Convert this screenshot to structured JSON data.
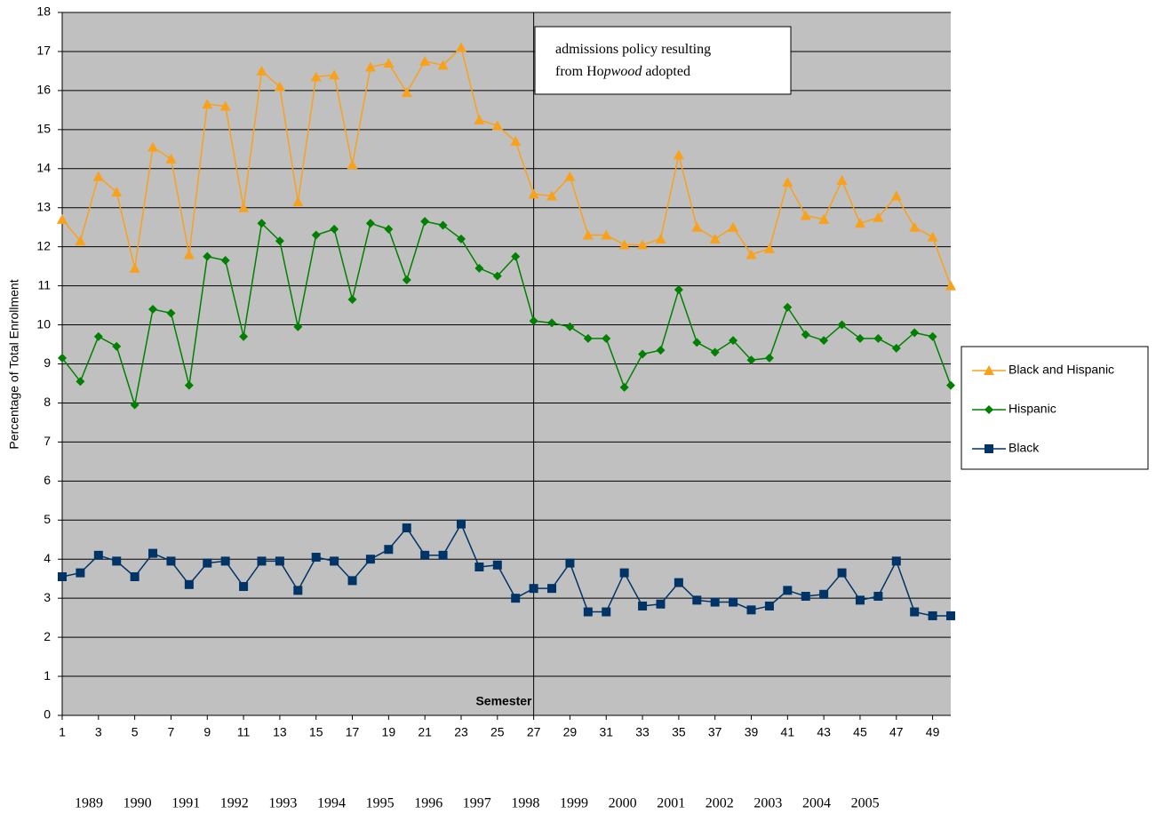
{
  "chart_data": {
    "type": "line",
    "y_label": "Percentage of Total Enrollment",
    "x_label": "Semester",
    "x": [
      1,
      2,
      3,
      4,
      5,
      6,
      7,
      8,
      9,
      10,
      11,
      12,
      13,
      14,
      15,
      16,
      17,
      18,
      19,
      20,
      21,
      22,
      23,
      24,
      25,
      26,
      27,
      28,
      29,
      30,
      31,
      32,
      33,
      34,
      35,
      36,
      37,
      38,
      39,
      40,
      41,
      42,
      43,
      44,
      45,
      46,
      47,
      48,
      49,
      50
    ],
    "xlim": [
      1,
      50
    ],
    "xticks": [
      1,
      3,
      5,
      7,
      9,
      11,
      13,
      15,
      17,
      19,
      21,
      23,
      25,
      27,
      29,
      31,
      33,
      35,
      37,
      39,
      41,
      43,
      45,
      47,
      49
    ],
    "ylim": [
      0,
      18
    ],
    "yticks": [
      0,
      1,
      2,
      3,
      4,
      5,
      6,
      7,
      8,
      9,
      10,
      11,
      12,
      13,
      14,
      15,
      16,
      17,
      18
    ],
    "grid": true,
    "legend": "right",
    "series": [
      {
        "name": "Black and Hispanic",
        "color": "#f9a11b",
        "marker": "triangle",
        "values": [
          12.7,
          12.15,
          13.8,
          13.4,
          11.45,
          14.55,
          14.25,
          11.8,
          15.65,
          15.6,
          13.0,
          16.5,
          16.1,
          13.15,
          16.35,
          16.4,
          14.1,
          16.6,
          16.7,
          15.95,
          16.75,
          16.65,
          17.1,
          15.25,
          15.1,
          14.7,
          13.35,
          13.3,
          13.8,
          12.3,
          12.3,
          12.05,
          12.05,
          12.2,
          14.35,
          12.5,
          12.2,
          12.5,
          11.8,
          11.95,
          13.65,
          12.8,
          12.7,
          13.7,
          12.6,
          12.75,
          13.3,
          12.5,
          12.25,
          11.0
        ]
      },
      {
        "name": "Hispanic",
        "color": "#008000",
        "marker": "diamond",
        "values": [
          9.15,
          8.55,
          9.7,
          9.45,
          7.95,
          10.4,
          10.3,
          8.45,
          11.75,
          11.65,
          9.7,
          12.6,
          12.15,
          9.95,
          12.3,
          12.45,
          10.65,
          12.6,
          12.45,
          11.15,
          12.65,
          12.55,
          12.2,
          11.45,
          11.25,
          11.75,
          10.1,
          10.05,
          9.95,
          9.65,
          9.65,
          8.4,
          9.25,
          9.35,
          10.9,
          9.55,
          9.3,
          9.6,
          9.1,
          9.15,
          10.45,
          9.75,
          9.6,
          10.0,
          9.65,
          9.65,
          9.4,
          9.8,
          9.7,
          8.45
        ]
      },
      {
        "name": "Black",
        "color": "#003366",
        "marker": "square",
        "values": [
          3.55,
          3.65,
          4.1,
          3.95,
          3.55,
          4.15,
          3.95,
          3.35,
          3.9,
          3.95,
          3.3,
          3.95,
          3.95,
          3.2,
          4.05,
          3.95,
          3.45,
          4.0,
          4.25,
          4.8,
          4.1,
          4.1,
          4.9,
          3.8,
          3.85,
          3.0,
          3.25,
          3.25,
          3.9,
          2.65,
          2.65,
          3.65,
          2.8,
          2.85,
          3.4,
          2.95,
          2.9,
          2.9,
          2.7,
          2.8,
          3.2,
          3.05,
          3.1,
          3.65,
          2.95,
          3.05,
          3.95,
          2.65,
          2.55,
          2.55
        ]
      }
    ],
    "annotation": {
      "x": 27,
      "lines": [
        [
          "admissions policy resulting"
        ],
        [
          "from Ho",
          "pwood",
          " adopted"
        ]
      ]
    },
    "year_labels": [
      "1989",
      "1990",
      "1991",
      "1992",
      "1993",
      "1994",
      "1995",
      "1996",
      "1997",
      "1998",
      "1999",
      "2000",
      "2001",
      "2002",
      "2003",
      "2004",
      "2005"
    ]
  }
}
